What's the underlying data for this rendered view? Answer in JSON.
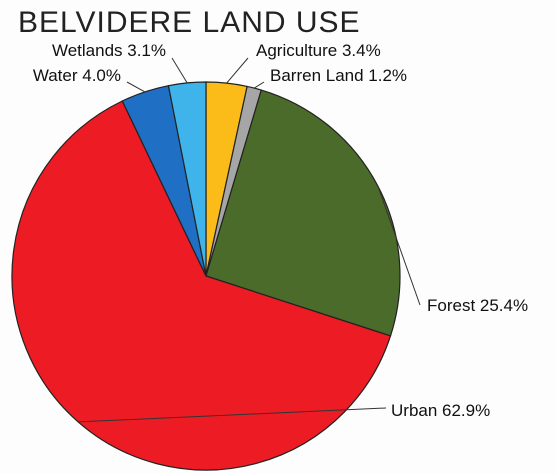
{
  "chart_data": {
    "type": "pie",
    "title": "BELVIDERE LAND USE",
    "slices": [
      {
        "label": "Agriculture",
        "value": 3.4,
        "display": "Agriculture 3.4%",
        "color": "#fbbc1a"
      },
      {
        "label": "Barren Land",
        "value": 1.2,
        "display": "Barren Land 1.2%",
        "color": "#a6a6a6"
      },
      {
        "label": "Forest",
        "value": 25.4,
        "display": "Forest 25.4%",
        "color": "#4a6b2a"
      },
      {
        "label": "Urban",
        "value": 62.9,
        "display": "Urban 62.9%",
        "color": "#ed1c24"
      },
      {
        "label": "Water",
        "value": 4.0,
        "display": "Water 4.0%",
        "color": "#1f6fc4"
      },
      {
        "label": "Wetlands",
        "value": 3.1,
        "display": "Wetlands 3.1%",
        "color": "#3fb4ea"
      }
    ],
    "start_angle": "12 o'clock",
    "direction": "clockwise",
    "legend": "none",
    "labels": "outside-with-leader-lines"
  }
}
